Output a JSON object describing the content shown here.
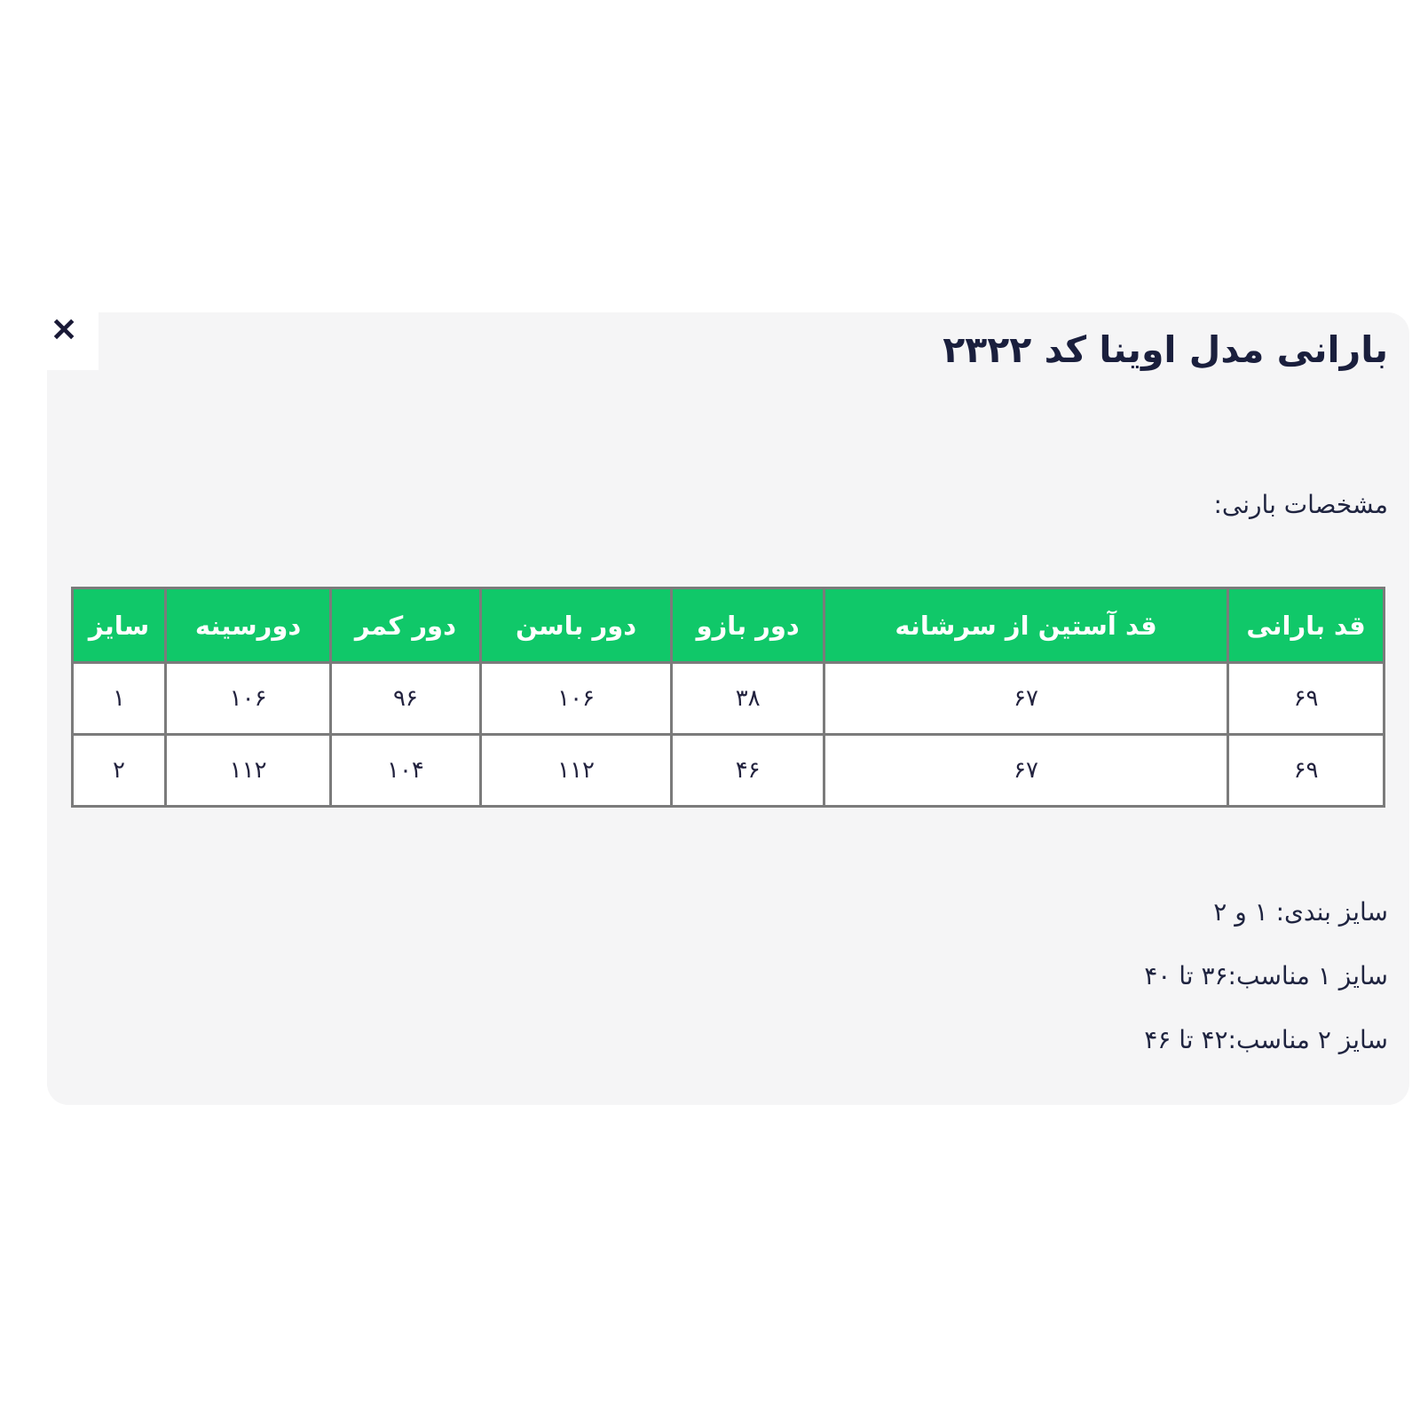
{
  "icons": {
    "close": "✕"
  },
  "colors": {
    "header_green": "#10c869",
    "header_text": "#ffffff",
    "table_border": "#7b7b7b",
    "panel_background": "#f5f5f6",
    "text_dark": "#1a1f3d"
  },
  "panel": {
    "title": "بارانی مدل اوینا کد ۲۳۲۲",
    "subtitle": "مشخصات بارنی:",
    "table": {
      "headers": [
        "قد بارانی",
        "قد آستین از سرشانه",
        "دور بازو",
        "دور باسن",
        "دور کمر",
        "دورسینه",
        "سایز"
      ],
      "rows": [
        [
          "۶۹",
          "۶۷",
          "۳۸",
          "۱۰۶",
          "۹۶",
          "۱۰۶",
          "۱"
        ],
        [
          "۶۹",
          "۶۷",
          "۴۶",
          "۱۱۲",
          "۱۰۴",
          "۱۱۲",
          "۲"
        ]
      ]
    },
    "notes": [
      "سایز بندی: ۱ و ۲",
      "سایز ۱ مناسب:۳۶ تا ۴۰",
      "سایز ۲ مناسب:۴۲ تا ۴۶"
    ]
  }
}
